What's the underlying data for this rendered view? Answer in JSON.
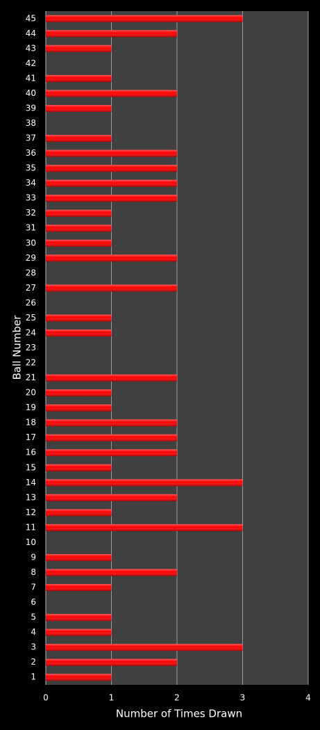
{
  "chart_data": {
    "type": "bar",
    "orientation": "horizontal",
    "x_label": "Number of Times Drawn",
    "y_label": "Ball Number",
    "categories": [
      "1",
      "2",
      "3",
      "4",
      "5",
      "6",
      "7",
      "8",
      "9",
      "10",
      "11",
      "12",
      "13",
      "14",
      "15",
      "16",
      "17",
      "18",
      "19",
      "20",
      "21",
      "22",
      "23",
      "24",
      "25",
      "26",
      "27",
      "28",
      "29",
      "30",
      "31",
      "32",
      "33",
      "34",
      "35",
      "36",
      "37",
      "38",
      "39",
      "40",
      "41",
      "42",
      "43",
      "44",
      "45"
    ],
    "values": [
      1,
      2,
      3,
      1,
      1,
      0,
      1,
      2,
      1,
      0,
      3,
      1,
      2,
      3,
      1,
      2,
      2,
      2,
      1,
      1,
      2,
      0,
      0,
      1,
      1,
      0,
      2,
      0,
      2,
      1,
      1,
      1,
      2,
      2,
      2,
      2,
      1,
      0,
      1,
      2,
      1,
      0,
      1,
      2,
      3
    ],
    "color": "#ff0000",
    "xlim": [
      0,
      4
    ],
    "xticks": [
      0,
      1,
      2,
      3,
      4
    ],
    "grid": true
  }
}
